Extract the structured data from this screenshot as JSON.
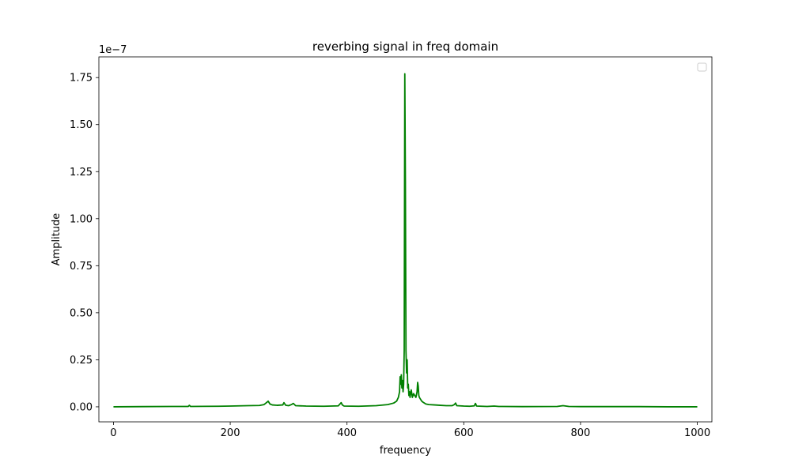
{
  "chart_data": {
    "type": "line",
    "title": "reverbing signal in freq domain",
    "xlabel": "frequency",
    "ylabel": "Amplitude",
    "y_offset_text": "1e−7",
    "y_scale_factor": 1e-07,
    "xlim": [
      -25,
      1025
    ],
    "ylim": [
      -0.08,
      1.86
    ],
    "x_ticks": [
      0,
      200,
      400,
      600,
      800,
      1000
    ],
    "x_tick_labels": [
      "0",
      "200",
      "400",
      "600",
      "800",
      "1000"
    ],
    "y_ticks": [
      0.0,
      0.25,
      0.5,
      0.75,
      1.0,
      1.25,
      1.5,
      1.75
    ],
    "y_tick_labels": [
      "0.00",
      "0.25",
      "0.50",
      "0.75",
      "1.00",
      "1.25",
      "1.50",
      "1.75"
    ],
    "legend": {
      "placement": "upper-right",
      "entries": []
    },
    "grid": false,
    "series": [
      {
        "color": "#008000",
        "x": [
          0,
          50,
          100,
          128,
          130,
          132,
          180,
          200,
          230,
          250,
          258,
          262,
          265,
          268,
          272,
          280,
          290,
          292,
          295,
          300,
          305,
          308,
          312,
          330,
          360,
          385,
          388,
          390,
          392,
          395,
          420,
          450,
          470,
          480,
          485,
          488,
          490,
          491,
          492,
          493,
          494,
          495,
          496,
          497,
          498,
          499,
          500,
          501,
          502,
          503,
          504,
          505,
          506,
          507,
          508,
          510,
          512,
          514,
          516,
          518,
          520,
          521,
          522,
          523,
          524,
          526,
          528,
          530,
          535,
          540,
          550,
          560,
          570,
          580,
          584,
          586,
          588,
          600,
          610,
          618,
          620,
          622,
          640,
          652,
          660,
          700,
          760,
          770,
          780,
          800,
          850,
          900,
          950,
          1000
        ],
        "y": [
          0.0,
          0.001,
          0.002,
          0.002,
          0.008,
          0.002,
          0.003,
          0.004,
          0.006,
          0.007,
          0.012,
          0.022,
          0.03,
          0.015,
          0.01,
          0.008,
          0.01,
          0.022,
          0.008,
          0.006,
          0.012,
          0.018,
          0.006,
          0.004,
          0.003,
          0.005,
          0.015,
          0.022,
          0.01,
          0.004,
          0.003,
          0.006,
          0.012,
          0.02,
          0.03,
          0.05,
          0.08,
          0.16,
          0.12,
          0.17,
          0.1,
          0.14,
          0.08,
          0.12,
          0.3,
          1.77,
          1.2,
          0.3,
          0.18,
          0.25,
          0.1,
          0.12,
          0.06,
          0.08,
          0.05,
          0.09,
          0.05,
          0.07,
          0.06,
          0.05,
          0.08,
          0.13,
          0.11,
          0.06,
          0.05,
          0.04,
          0.03,
          0.025,
          0.015,
          0.012,
          0.01,
          0.008,
          0.006,
          0.006,
          0.012,
          0.02,
          0.006,
          0.004,
          0.003,
          0.005,
          0.018,
          0.004,
          0.002,
          0.004,
          0.002,
          0.001,
          0.002,
          0.006,
          0.002,
          0.001,
          0.001,
          0.001,
          0.0,
          0.0
        ]
      }
    ]
  }
}
